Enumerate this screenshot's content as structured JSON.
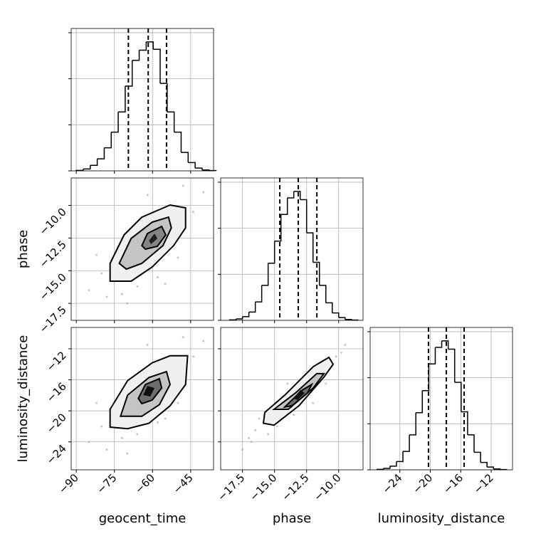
{
  "chart_data": [
    {
      "type": "histogram",
      "bins": [
        -90,
        -87.25,
        -84.5,
        -81.75,
        -79,
        -76.25,
        -73.5,
        -70.75,
        -68,
        -65.25,
        -62.5,
        -59.75,
        -57,
        -54.25,
        -51.5,
        -48.75,
        -46,
        -43.25,
        -40.5,
        -37.75,
        -35
      ],
      "values": [
        5,
        20,
        60,
        130,
        250,
        420,
        640,
        920,
        1200,
        1310,
        1400,
        1320,
        950,
        640,
        420,
        200,
        90,
        30,
        10,
        3
      ],
      "quantiles": [
        -69.5,
        -61.7,
        -54.5
      ],
      "color": "#000000",
      "xlim": [
        -92,
        -36
      ],
      "ylim": [
        0,
        1546
      ],
      "xticks": [
        -90,
        -75,
        -60,
        -45
      ],
      "yticks": [
        0,
        500,
        1000,
        1500
      ],
      "xticklabels": false,
      "grid": true
    },
    {
      "type": "contour",
      "xlim": [
        -92,
        -36
      ],
      "ylim": [
        -18.8,
        -7.9
      ],
      "xticks": [
        -90,
        -75,
        -60,
        -45
      ],
      "yticks": [
        {
          "value": -10,
          "label": "−10.0"
        },
        {
          "value": -12.5,
          "label": "−12.5"
        },
        {
          "value": -15,
          "label": "−15.0"
        },
        {
          "value": -17.5,
          "label": "−17.5"
        }
      ],
      "xticklabels": false,
      "yticklabels": true,
      "ylabel": "phase",
      "grid": true,
      "points": {
        "x": [
          -85,
          -80,
          -78,
          -72,
          -66,
          -58,
          -50,
          -44,
          -40,
          -70,
          -62,
          -48,
          -82,
          -55
        ],
        "y": [
          -16.5,
          -15.2,
          -17,
          -16.8,
          -16.2,
          -15.5,
          -14,
          -10.5,
          -9,
          -17.5,
          -9.2,
          -8.5,
          -13.8,
          -16
        ]
      },
      "point_color": "#a0a0a0",
      "line_color": "#000000",
      "contours": [
        {
          "fill": "#f0f0f0",
          "x": [
            -76.7,
            -76.7,
            -71.2,
            -64.2,
            -53.1,
            -47,
            -47,
            -51.7,
            -60.1,
            -68.4
          ],
          "y": [
            -15.8,
            -14.44,
            -12.26,
            -10.9,
            -9.97,
            -10.19,
            -11.72,
            -13.08,
            -14.71,
            -15.8
          ]
        },
        {
          "fill": "#c4c4c4",
          "x": [
            -73.1,
            -68.4,
            -60.1,
            -53.7,
            -52.6,
            -55.9,
            -64.2,
            -70.3
          ],
          "y": [
            -14.44,
            -12.53,
            -11.28,
            -10.9,
            -11.72,
            -13.08,
            -14.44,
            -14.88
          ]
        },
        {
          "fill": "#858585",
          "x": [
            -64.2,
            -62,
            -56.4,
            -54.8,
            -58.1,
            -62.8
          ],
          "y": [
            -13.08,
            -12.15,
            -11.61,
            -12.26,
            -13.13,
            -13.35
          ]
        },
        {
          "fill": "#202020",
          "x": [
            -61.4,
            -59.2,
            -58.1,
            -60.6
          ],
          "y": [
            -12.7,
            -12.15,
            -12.53,
            -12.97
          ]
        }
      ]
    },
    {
      "type": "histogram",
      "bins": [
        -18.5,
        -18,
        -17.5,
        -17,
        -16.5,
        -16,
        -15.5,
        -15,
        -14.5,
        -14,
        -13.5,
        -13,
        -12.5,
        -12,
        -11.5,
        -11,
        -10.5,
        -10,
        -9.5,
        -9,
        -8.5
      ],
      "values": [
        5,
        15,
        40,
        90,
        200,
        380,
        620,
        860,
        1150,
        1330,
        1400,
        1310,
        950,
        630,
        380,
        190,
        80,
        30,
        10,
        3
      ],
      "quantiles": [
        -14.59,
        -13.15,
        -11.7
      ],
      "color": "#000000",
      "xlim": [
        -19.2,
        -8.1
      ],
      "ylim": [
        0,
        1546
      ],
      "xticks": [
        -17.5,
        -15,
        -12.5,
        -10
      ],
      "yticks": [
        0,
        500,
        1000,
        1500
      ],
      "xticklabels": false,
      "grid": true
    },
    {
      "type": "contour",
      "xlim": [
        -92,
        -36
      ],
      "ylim": [
        -27.6,
        -9.25
      ],
      "xticks": [
        {
          "value": -90,
          "label": "−90"
        },
        {
          "value": -75,
          "label": "−75"
        },
        {
          "value": -60,
          "label": "−60"
        },
        {
          "value": -45,
          "label": "−45"
        }
      ],
      "yticks": [
        {
          "value": -12,
          "label": "−12"
        },
        {
          "value": -16,
          "label": "−16"
        },
        {
          "value": -20,
          "label": "−20"
        },
        {
          "value": -24,
          "label": "−24"
        }
      ],
      "xticklabels": true,
      "yticklabels": true,
      "xlabel": "geocent_time",
      "ylabel": "luminosity_distance",
      "grid": true,
      "points": {
        "x": [
          -85,
          -80,
          -78,
          -72,
          -66,
          -58,
          -50,
          -44,
          -40,
          -70,
          -62,
          -48,
          -82,
          -55
        ],
        "y": [
          -24,
          -22,
          -25,
          -23.5,
          -23,
          -21.5,
          -19,
          -13,
          -11,
          -25.5,
          -11.5,
          -10.5,
          -19,
          -21
        ]
      },
      "point_color": "#a0a0a0",
      "line_color": "#000000",
      "contours": [
        {
          "fill": "#f0f0f0",
          "x": [
            -76.7,
            -76.7,
            -69.8,
            -60.1,
            -53.1,
            -46.2,
            -47,
            -53.1,
            -61.4,
            -69.8
          ],
          "y": [
            -22.1,
            -19.8,
            -16.1,
            -13.8,
            -12.9,
            -12.9,
            -16.6,
            -19.35,
            -21.6,
            -22.3
          ]
        },
        {
          "fill": "#c4c4c4",
          "x": [
            -72.6,
            -69.8,
            -61.4,
            -54.5,
            -53.1,
            -57.3,
            -64.2
          ],
          "y": [
            -20.7,
            -17.97,
            -15.7,
            -14.94,
            -16.6,
            -19.2,
            -20.7
          ]
        },
        {
          "fill": "#6e6e6e",
          "x": [
            -65.6,
            -62.8,
            -57.3,
            -56.4,
            -60.1,
            -64.2
          ],
          "y": [
            -18.4,
            -16.6,
            -15.86,
            -17.05,
            -18.6,
            -19.07
          ]
        },
        {
          "fill": "#101010",
          "x": [
            -63.7,
            -62,
            -59.2,
            -60.9
          ],
          "y": [
            -17.97,
            -16.8,
            -17.05,
            -18.15
          ]
        }
      ]
    },
    {
      "type": "contour",
      "xlim": [
        -19.2,
        -8.1
      ],
      "ylim": [
        -27.6,
        -9.25
      ],
      "xticks": [
        {
          "value": -17.5,
          "label": "−17.5"
        },
        {
          "value": -15,
          "label": "−15.0"
        },
        {
          "value": -12.5,
          "label": "−12.5"
        },
        {
          "value": -10,
          "label": "−10.0"
        }
      ],
      "yticks": [
        -12,
        -16,
        -20,
        -24
      ],
      "xticklabels": true,
      "yticklabels": false,
      "xlabel": "phase",
      "grid": true,
      "points": {
        "x": [
          -17.5,
          -17,
          -16.5,
          -16.8,
          -15.5,
          -14.8,
          -12,
          -11,
          -10.2,
          -9.5,
          -16.2,
          -9.8,
          -13.5,
          -14
        ],
        "y": [
          -25,
          -23.5,
          -22.5,
          -24,
          -23,
          -22,
          -19,
          -16.5,
          -13,
          -11.5,
          -21,
          -12.5,
          -20.5,
          -16.5
        ]
      },
      "point_color": "#a0a0a0",
      "line_color": "#000000",
      "contours": [
        {
          "fill": "#f0f0f0",
          "x": [
            -15.87,
            -15.76,
            -14.2,
            -11.98,
            -10.76,
            -10.43,
            -11.15,
            -13.1,
            -15.04
          ],
          "y": [
            -21.6,
            -20.2,
            -17.97,
            -14.3,
            -13.1,
            -14,
            -15.65,
            -19.35,
            -21.85
          ]
        },
        {
          "fill": "#c4c4c4",
          "x": [
            -15.04,
            -13.37,
            -11.71,
            -11.15,
            -11.98,
            -13.93
          ],
          "y": [
            -19.8,
            -17.7,
            -15.2,
            -15.2,
            -17.05,
            -19.8
          ]
        },
        {
          "fill": "#6e6e6e",
          "x": [
            -14.2,
            -12.82,
            -12.1,
            -12.43,
            -13.65
          ],
          "y": [
            -19.5,
            -17.3,
            -16.6,
            -17.7,
            -19.35
          ]
        },
        {
          "fill": "#101010",
          "x": [
            -13.54,
            -12.98,
            -12.65,
            -13.2
          ],
          "y": [
            -18.4,
            -17.3,
            -17.7,
            -18.6
          ]
        }
      ]
    },
    {
      "type": "histogram",
      "bins": [
        -27,
        -26.15,
        -25.3,
        -24.45,
        -23.6,
        -22.75,
        -21.9,
        -21.05,
        -20.2,
        -19.35,
        -18.5,
        -17.65,
        -16.8,
        -15.95,
        -15.1,
        -14.25,
        -13.4,
        -12.55,
        -11.7,
        -10.85,
        -10
      ],
      "values": [
        5,
        15,
        40,
        90,
        200,
        380,
        620,
        860,
        1150,
        1330,
        1400,
        1310,
        950,
        630,
        380,
        190,
        80,
        30,
        10,
        3
      ],
      "quantiles": [
        -20.24,
        -17.9,
        -15.56
      ],
      "color": "#000000",
      "xlim": [
        -27.9,
        -9.2
      ],
      "ylim": [
        0,
        1546
      ],
      "xticks": [
        {
          "value": -24,
          "label": "−24"
        },
        {
          "value": -20,
          "label": "−20"
        },
        {
          "value": -16,
          "label": "−16"
        },
        {
          "value": -12,
          "label": "−12"
        }
      ],
      "yticks": [
        0,
        500,
        1000,
        1500
      ],
      "xticklabels": true,
      "xlabel": "luminosity_distance",
      "grid": true
    }
  ]
}
